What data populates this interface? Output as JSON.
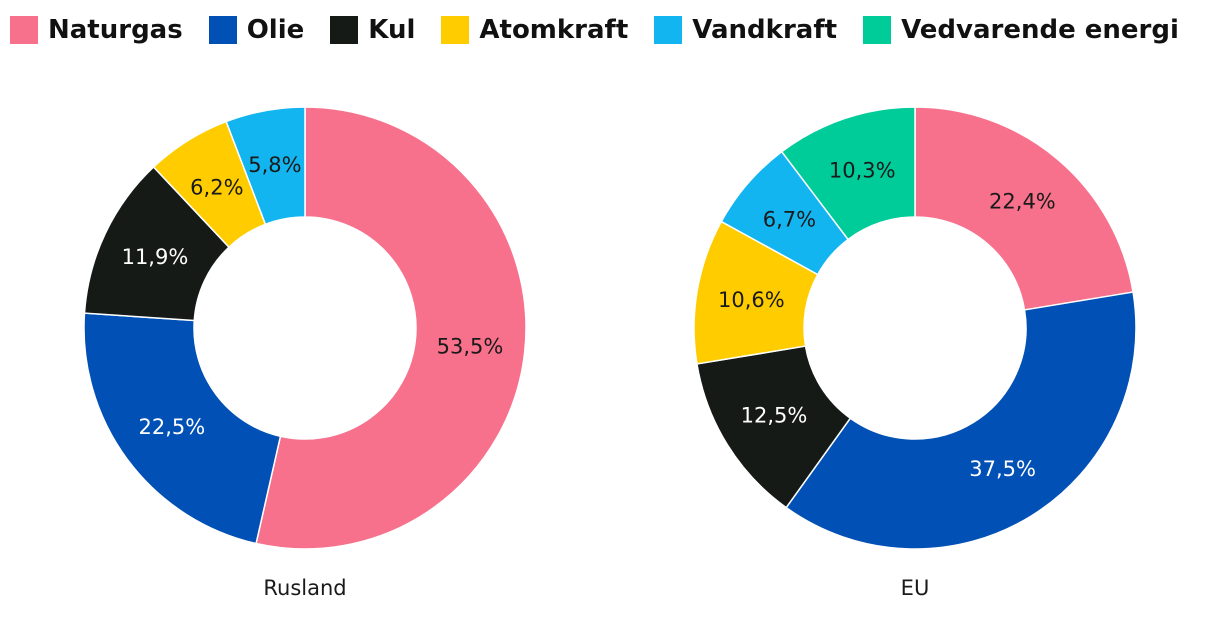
{
  "legend": [
    {
      "label": "Naturgas",
      "color": "#F7718C"
    },
    {
      "label": "Olie",
      "color": "#0050B5"
    },
    {
      "label": "Kul",
      "color": "#151A17"
    },
    {
      "label": "Atomkraft",
      "color": "#FFCC00"
    },
    {
      "label": "Vandkraft",
      "color": "#12B5F0"
    },
    {
      "label": "Vedvarende energi",
      "color": "#00CC99"
    }
  ],
  "chart_data": [
    {
      "type": "pie",
      "title": "Rusland",
      "categories": [
        "Naturgas",
        "Olie",
        "Kul",
        "Atomkraft",
        "Vandkraft"
      ],
      "values": [
        53.5,
        22.5,
        11.9,
        6.2,
        5.8
      ],
      "labels": [
        "53,5%",
        "22,5%",
        "11,9%",
        "6,2%",
        "5,8%"
      ],
      "label_colors": [
        "#1a1a1a",
        "#ffffff",
        "#ffffff",
        "#1a1a1a",
        "#1a1a1a"
      ]
    },
    {
      "type": "pie",
      "title": "EU",
      "categories": [
        "Naturgas",
        "Olie",
        "Kul",
        "Atomkraft",
        "Vandkraft",
        "Vedvarende energi"
      ],
      "values": [
        22.4,
        37.5,
        12.5,
        10.6,
        6.7,
        10.3
      ],
      "labels": [
        "22,4%",
        "37,5%",
        "12,5%",
        "10,6%",
        "6,7%",
        "10,3%"
      ],
      "label_colors": [
        "#1a1a1a",
        "#ffffff",
        "#ffffff",
        "#1a1a1a",
        "#1a1a1a",
        "#1a1a1a"
      ]
    }
  ]
}
